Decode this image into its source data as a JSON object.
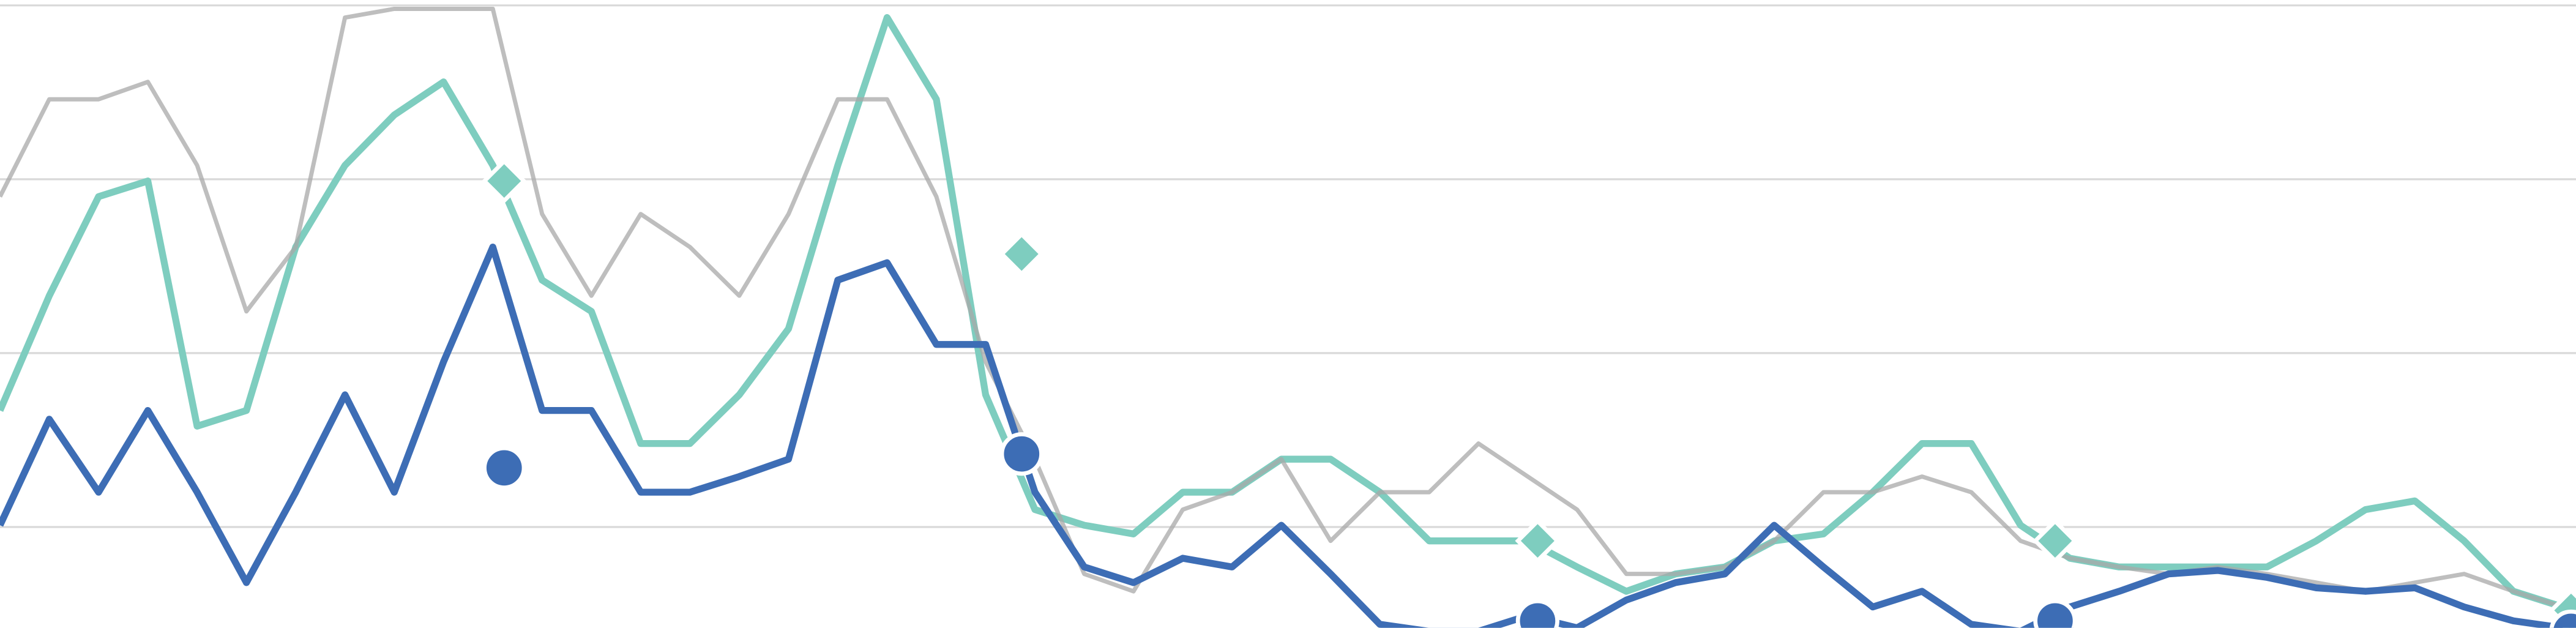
{
  "chart_data": {
    "type": "line",
    "x": [
      0,
      1,
      2,
      3,
      4,
      5,
      6,
      7,
      8,
      9,
      10,
      11,
      12,
      13,
      14,
      15,
      16,
      17,
      18,
      19,
      20,
      21,
      22,
      23,
      24,
      25,
      26,
      27,
      28,
      29,
      30,
      31,
      32,
      33,
      34,
      35,
      36,
      37,
      38,
      39,
      40,
      41,
      42,
      43,
      44,
      45,
      46,
      47,
      48,
      49,
      50,
      51,
      52
    ],
    "xlim": [
      0,
      52.27
    ],
    "ylim": [
      0.42,
      4.03
    ],
    "yticks": [
      1,
      2,
      3,
      4
    ],
    "grid": true,
    "series": [
      {
        "color": "#7ecdbf",
        "width": 4.2,
        "opacity": 1,
        "values": [
          1.67,
          2.33,
          2.9,
          2.99,
          1.58,
          1.67,
          2.61,
          3.08,
          3.37,
          3.56,
          3.08,
          2.42,
          2.24,
          1.48,
          1.48,
          1.76,
          2.14,
          3.08,
          3.93,
          3.46,
          1.76,
          1.1,
          1.01,
          0.96,
          1.2,
          1.2,
          1.39,
          1.39,
          1.2,
          0.92,
          0.92,
          0.92,
          0.77,
          0.63,
          0.73,
          0.77,
          0.92,
          0.96,
          1.2,
          1.48,
          1.48,
          1.01,
          0.82,
          0.77,
          0.77,
          0.77,
          0.77,
          0.92,
          1.1,
          1.15,
          0.92,
          0.63,
          0.54
        ]
      },
      {
        "color": "#a8a8a8",
        "width": 2.6,
        "opacity": 0.75,
        "values": [
          2.9,
          3.46,
          3.46,
          3.56,
          3.08,
          2.24,
          2.61,
          3.93,
          3.98,
          3.98,
          3.98,
          2.8,
          2.33,
          2.8,
          2.61,
          2.33,
          2.8,
          3.46,
          3.46,
          2.9,
          1.95,
          1.39,
          0.73,
          0.63,
          1.1,
          1.2,
          1.39,
          0.92,
          1.2,
          1.2,
          1.48,
          1.29,
          1.1,
          0.73,
          0.73,
          0.77,
          0.92,
          1.2,
          1.2,
          1.29,
          1.2,
          0.92,
          0.82,
          0.77,
          0.73,
          0.77,
          0.73,
          0.68,
          0.63,
          0.68,
          0.73,
          0.63,
          0.54
        ]
      },
      {
        "color": "#3d6db5",
        "width": 4.2,
        "opacity": 1,
        "values": [
          1.01,
          1.62,
          1.2,
          1.67,
          1.2,
          0.68,
          1.2,
          1.76,
          1.2,
          1.95,
          2.61,
          1.67,
          1.67,
          1.2,
          1.2,
          1.29,
          1.39,
          2.42,
          2.52,
          2.05,
          2.05,
          1.2,
          0.77,
          0.68,
          0.82,
          0.77,
          1.01,
          0.73,
          0.44,
          0.4,
          0.4,
          0.49,
          0.42,
          0.58,
          0.68,
          0.73,
          1.01,
          0.77,
          0.54,
          0.63,
          0.44,
          0.4,
          0.54,
          0.63,
          0.73,
          0.75,
          0.71,
          0.65,
          0.63,
          0.65,
          0.54,
          0.46,
          0.42
        ]
      }
    ],
    "markers": [
      {
        "shape": "diamond",
        "color": "#7ecdbf",
        "x": [
          10.23,
          20.73,
          31.2,
          41.7,
          52.17
        ],
        "values": [
          2.99,
          2.57,
          0.92,
          0.92,
          0.52
        ]
      },
      {
        "shape": "circle",
        "color": "#3d6db5",
        "x": [
          10.23,
          20.73,
          31.2,
          41.7,
          52.17
        ],
        "values": [
          1.34,
          1.42,
          0.46,
          0.46,
          0.4
        ]
      }
    ]
  }
}
